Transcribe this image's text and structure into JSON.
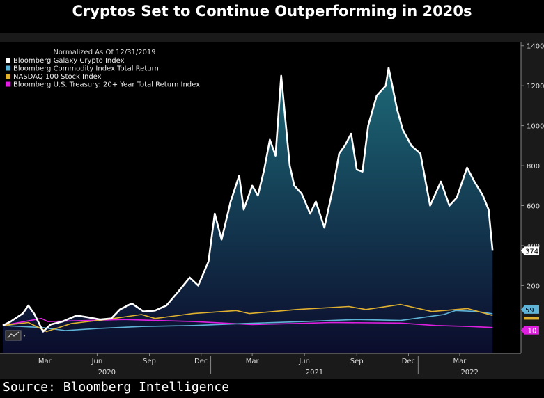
{
  "title": "Cryptos Set to Continue Outperforming in 2020s",
  "source": "Source: Bloomberg Intelligence",
  "colors": {
    "background": "#000000",
    "plot_bg": "#000000",
    "crypto": "#ffffff",
    "commodity": "#5fb3d6",
    "nasdaq": "#e0b030",
    "treasury": "#e020e0",
    "area_top": "#1a5a6a",
    "area_bottom": "#0a0a2a"
  },
  "chart_data": {
    "type": "line",
    "title": "",
    "legend_title": "Normalized As Of 12/31/2019",
    "legend_position": "top-left",
    "ylim": [
      -140,
      1420
    ],
    "yticks": [
      200,
      400,
      600,
      800,
      1000,
      1200,
      1400
    ],
    "grid": false,
    "x_month_labels": [
      "Mar",
      "Jun",
      "Sep",
      "Dec",
      "Mar",
      "Jun",
      "Sep",
      "Dec",
      "Mar"
    ],
    "x_year_labels": [
      "2020",
      "2021",
      "2022"
    ],
    "x_axis_tick_months": [
      "2020-03",
      "2020-06",
      "2020-09",
      "2020-12",
      "2021-03",
      "2021-06",
      "2021-09",
      "2021-12",
      "2022-03"
    ],
    "series": [
      {
        "name": "Bloomberg Galaxy Crypto Index",
        "color": "#ffffff",
        "last_value_label": "374",
        "points": [
          [
            "2020-01-01",
            0
          ],
          [
            "2020-01-15",
            20
          ],
          [
            "2020-02-05",
            60
          ],
          [
            "2020-02-15",
            100
          ],
          [
            "2020-02-25",
            60
          ],
          [
            "2020-03-12",
            -30
          ],
          [
            "2020-03-25",
            5
          ],
          [
            "2020-04-15",
            20
          ],
          [
            "2020-05-10",
            50
          ],
          [
            "2020-06-01",
            40
          ],
          [
            "2020-06-20",
            30
          ],
          [
            "2020-07-10",
            35
          ],
          [
            "2020-07-25",
            80
          ],
          [
            "2020-08-15",
            110
          ],
          [
            "2020-09-05",
            70
          ],
          [
            "2020-09-25",
            75
          ],
          [
            "2020-10-15",
            100
          ],
          [
            "2020-11-05",
            170
          ],
          [
            "2020-11-25",
            240
          ],
          [
            "2020-12-10",
            200
          ],
          [
            "2020-12-28",
            320
          ],
          [
            "2021-01-08",
            560
          ],
          [
            "2021-01-20",
            430
          ],
          [
            "2021-02-05",
            620
          ],
          [
            "2021-02-20",
            750
          ],
          [
            "2021-02-28",
            580
          ],
          [
            "2021-03-15",
            700
          ],
          [
            "2021-03-25",
            650
          ],
          [
            "2021-04-05",
            780
          ],
          [
            "2021-04-15",
            930
          ],
          [
            "2021-04-25",
            850
          ],
          [
            "2021-05-05",
            1250
          ],
          [
            "2021-05-20",
            800
          ],
          [
            "2021-05-28",
            700
          ],
          [
            "2021-06-10",
            660
          ],
          [
            "2021-06-25",
            560
          ],
          [
            "2021-07-05",
            620
          ],
          [
            "2021-07-20",
            490
          ],
          [
            "2021-08-05",
            700
          ],
          [
            "2021-08-15",
            860
          ],
          [
            "2021-08-25",
            900
          ],
          [
            "2021-09-05",
            960
          ],
          [
            "2021-09-15",
            780
          ],
          [
            "2021-09-25",
            770
          ],
          [
            "2021-10-05",
            1000
          ],
          [
            "2021-10-20",
            1150
          ],
          [
            "2021-11-05",
            1200
          ],
          [
            "2021-11-10",
            1290
          ],
          [
            "2021-11-25",
            1080
          ],
          [
            "2021-12-05",
            980
          ],
          [
            "2021-12-20",
            900
          ],
          [
            "2022-01-05",
            860
          ],
          [
            "2022-01-22",
            600
          ],
          [
            "2022-02-10",
            720
          ],
          [
            "2022-02-25",
            600
          ],
          [
            "2022-03-10",
            640
          ],
          [
            "2022-03-28",
            790
          ],
          [
            "2022-04-10",
            720
          ],
          [
            "2022-04-25",
            650
          ],
          [
            "2022-05-05",
            580
          ],
          [
            "2022-05-12",
            374
          ]
        ]
      },
      {
        "name": "Bloomberg Commodity Index Total Return",
        "color": "#5fb3d6",
        "last_value_label": "59",
        "points": [
          [
            "2020-01-01",
            0
          ],
          [
            "2020-03-10",
            -10
          ],
          [
            "2020-04-20",
            -25
          ],
          [
            "2020-06-15",
            -15
          ],
          [
            "2020-09-01",
            -5
          ],
          [
            "2020-12-01",
            0
          ],
          [
            "2021-03-01",
            10
          ],
          [
            "2021-06-15",
            20
          ],
          [
            "2021-09-15",
            30
          ],
          [
            "2021-12-01",
            25
          ],
          [
            "2022-02-15",
            55
          ],
          [
            "2022-03-08",
            75
          ],
          [
            "2022-04-15",
            70
          ],
          [
            "2022-05-12",
            59
          ]
        ]
      },
      {
        "name": "NASDAQ 100 Stock Index",
        "color": "#e0b030",
        "last_value_label": "",
        "points": [
          [
            "2020-01-01",
            0
          ],
          [
            "2020-02-15",
            15
          ],
          [
            "2020-03-18",
            -30
          ],
          [
            "2020-05-01",
            10
          ],
          [
            "2020-07-01",
            30
          ],
          [
            "2020-09-01",
            55
          ],
          [
            "2020-09-25",
            35
          ],
          [
            "2020-12-01",
            60
          ],
          [
            "2021-02-15",
            75
          ],
          [
            "2021-03-10",
            60
          ],
          [
            "2021-06-01",
            80
          ],
          [
            "2021-09-01",
            95
          ],
          [
            "2021-10-01",
            80
          ],
          [
            "2021-12-01",
            105
          ],
          [
            "2022-01-25",
            70
          ],
          [
            "2022-03-29",
            85
          ],
          [
            "2022-05-12",
            50
          ]
        ]
      },
      {
        "name": "Bloomberg U.S. Treasury: 20+ Year Total Return Index",
        "color": "#e020e0",
        "last_value_label": "-10",
        "points": [
          [
            "2020-01-01",
            0
          ],
          [
            "2020-03-09",
            35
          ],
          [
            "2020-03-20",
            20
          ],
          [
            "2020-08-01",
            30
          ],
          [
            "2020-12-01",
            20
          ],
          [
            "2021-03-15",
            5
          ],
          [
            "2021-06-01",
            10
          ],
          [
            "2021-08-01",
            15
          ],
          [
            "2021-12-01",
            12
          ],
          [
            "2022-02-01",
            0
          ],
          [
            "2022-04-01",
            -5
          ],
          [
            "2022-05-12",
            -10
          ]
        ]
      }
    ]
  }
}
